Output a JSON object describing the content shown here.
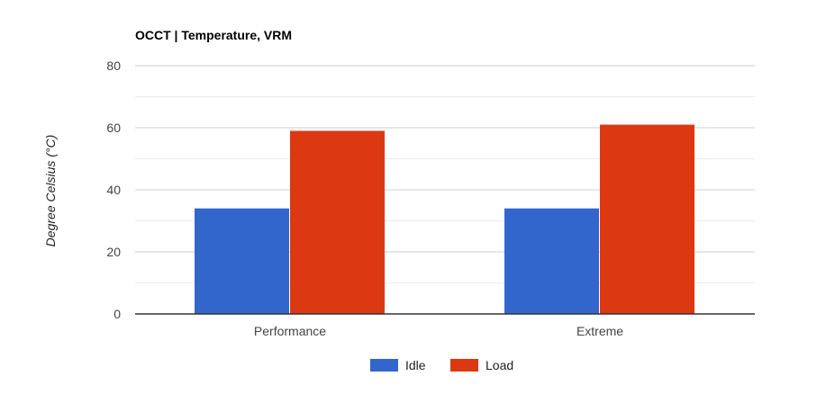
{
  "chart_data": {
    "type": "bar",
    "title": "OCCT | Temperature, VRM",
    "xlabel": "",
    "ylabel": "Degree Celsius (°C)",
    "categories": [
      "Performance",
      "Extreme"
    ],
    "series": [
      {
        "name": "Idle",
        "values": [
          34,
          34
        ],
        "color": "#3366cc"
      },
      {
        "name": "Load",
        "values": [
          59,
          61
        ],
        "color": "#dc3912"
      }
    ],
    "ylim": [
      0,
      80
    ],
    "yticks": [
      0,
      20,
      40,
      60,
      80
    ],
    "grid": true,
    "legend": "bottom"
  }
}
